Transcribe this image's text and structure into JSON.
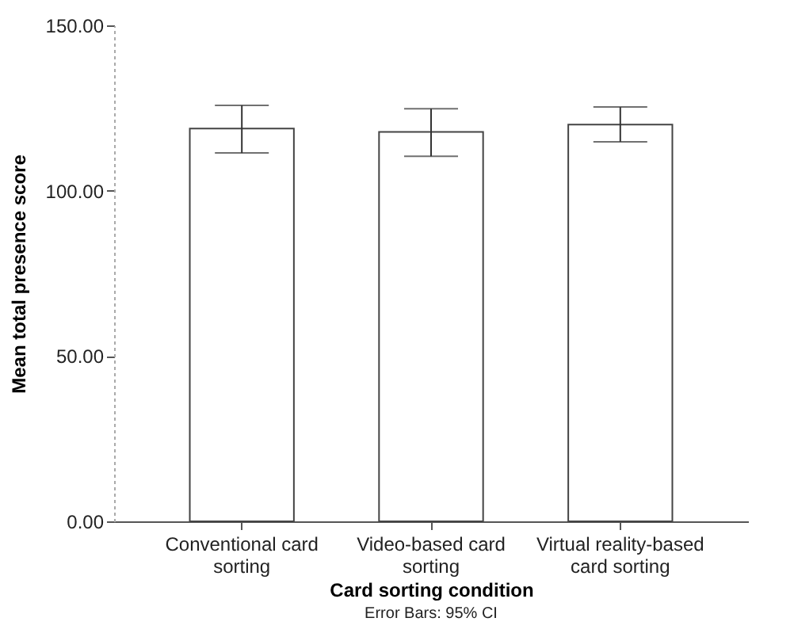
{
  "chart_data": {
    "type": "bar",
    "xlabel": "Card sorting condition",
    "ylabel": "Mean total presence score",
    "categories": [
      "Conventional card sorting",
      "Video-based card sorting",
      "Virtual reality-based card sorting"
    ],
    "values": [
      118.8,
      117.8,
      120.0
    ],
    "errors": [
      [
        111.4,
        125.8
      ],
      [
        110.4,
        124.8
      ],
      [
        114.8,
        125.3
      ]
    ],
    "color": "#ffffff",
    "ylim": [
      0,
      150
    ],
    "yticks": [
      {
        "value": 0,
        "label": "0.00"
      },
      {
        "value": 50,
        "label": "50.00"
      },
      {
        "value": 100,
        "label": "100.00"
      },
      {
        "value": 150,
        "label": "150.00"
      }
    ],
    "grid": false,
    "annotations": [
      "Error Bars: 95% CI"
    ]
  }
}
